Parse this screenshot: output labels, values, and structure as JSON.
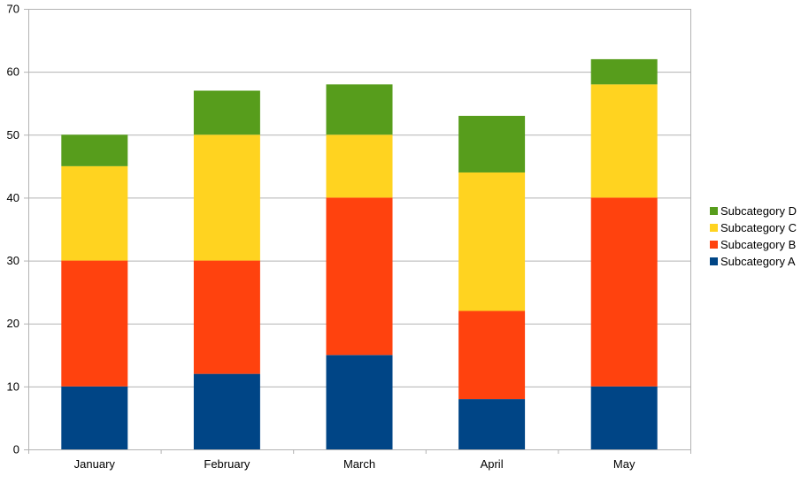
{
  "chart_data": {
    "type": "bar",
    "stacked": true,
    "title": "",
    "xlabel": "",
    "ylabel": "",
    "ylim": [
      0,
      70
    ],
    "yticks": [
      0,
      10,
      20,
      30,
      40,
      50,
      60,
      70
    ],
    "grid": true,
    "legend_position": "right",
    "categories": [
      "January",
      "February",
      "March",
      "April",
      "May"
    ],
    "series": [
      {
        "name": "Subcategory A",
        "color": "#004586",
        "values": [
          10,
          12,
          15,
          8,
          10
        ]
      },
      {
        "name": "Subcategory B",
        "color": "#ff420e",
        "values": [
          20,
          18,
          25,
          14,
          30
        ]
      },
      {
        "name": "Subcategory C",
        "color": "#ffd320",
        "values": [
          15,
          20,
          10,
          22,
          18
        ]
      },
      {
        "name": "Subcategory D",
        "color": "#579d1c",
        "values": [
          5,
          7,
          8,
          9,
          4
        ]
      }
    ]
  }
}
